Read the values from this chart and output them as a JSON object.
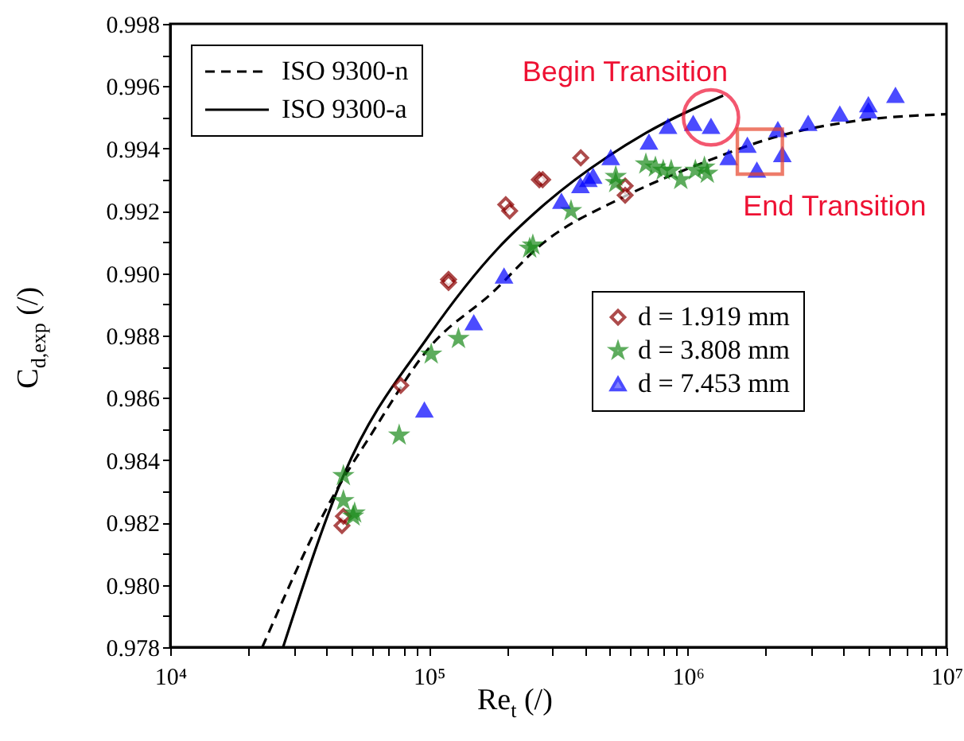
{
  "chart_data": {
    "type": "scatter",
    "xlabel": "Re$_{t}$ (/)",
    "ylabel": "C$_{d,exp}$ (/)",
    "log": "x",
    "grid": false,
    "legend": "top left",
    "xlim": [
      10000,
      10000000
    ],
    "xticks": [
      {
        "value": 10000,
        "label": "10⁴"
      },
      {
        "value": 20000,
        "label": null
      },
      {
        "value": 30000,
        "label": null
      },
      {
        "value": 40000,
        "label": null
      },
      {
        "value": 50000,
        "label": null
      },
      {
        "value": 60000,
        "label": null
      },
      {
        "value": 70000,
        "label": null
      },
      {
        "value": 80000,
        "label": null
      },
      {
        "value": 90000,
        "label": null
      },
      {
        "value": 100000,
        "label": "10⁵"
      },
      {
        "value": 200000,
        "label": null
      },
      {
        "value": 300000,
        "label": null
      },
      {
        "value": 400000,
        "label": null
      },
      {
        "value": 500000,
        "label": null
      },
      {
        "value": 600000,
        "label": null
      },
      {
        "value": 700000,
        "label": null
      },
      {
        "value": 800000,
        "label": null
      },
      {
        "value": 900000,
        "label": null
      },
      {
        "value": 1000000,
        "label": "10⁶"
      },
      {
        "value": 2000000,
        "label": null
      },
      {
        "value": 3000000,
        "label": null
      },
      {
        "value": 4000000,
        "label": null
      },
      {
        "value": 5000000,
        "label": null
      },
      {
        "value": 6000000,
        "label": null
      },
      {
        "value": 7000000,
        "label": null
      },
      {
        "value": 8000000,
        "label": null
      },
      {
        "value": 9000000,
        "label": null
      },
      {
        "value": 10000000,
        "label": "10⁷"
      }
    ],
    "ylim": [
      0.978,
      0.998
    ],
    "yticks": [
      {
        "value": 0.978,
        "label": "0.978"
      },
      {
        "value": 0.979,
        "label": null
      },
      {
        "value": 0.98,
        "label": "0.980"
      },
      {
        "value": 0.981,
        "label": null
      },
      {
        "value": 0.982,
        "label": "0.982"
      },
      {
        "value": 0.983,
        "label": null
      },
      {
        "value": 0.984,
        "label": "0.984"
      },
      {
        "value": 0.985,
        "label": null
      },
      {
        "value": 0.986,
        "label": "0.986"
      },
      {
        "value": 0.987,
        "label": null
      },
      {
        "value": 0.988,
        "label": "0.988"
      },
      {
        "value": 0.989,
        "label": null
      },
      {
        "value": 0.99,
        "label": "0.990"
      },
      {
        "value": 0.991,
        "label": null
      },
      {
        "value": 0.992,
        "label": "0.992"
      },
      {
        "value": 0.993,
        "label": null
      },
      {
        "value": 0.994,
        "label": "0.994"
      },
      {
        "value": 0.995,
        "label": null
      },
      {
        "value": 0.996,
        "label": "0.996"
      },
      {
        "value": 0.997,
        "label": null
      },
      {
        "value": 0.998,
        "label": "0.998"
      }
    ],
    "annotations": [
      {
        "text": "Begin Transition",
        "x": 1230000,
        "y": 0.995
      },
      {
        "text": "End Transition",
        "x": 1900000,
        "y": 0.9939
      }
    ],
    "series": [
      {
        "name": "ISO 9300-n",
        "type": "line",
        "line_style": "dashed",
        "marker": "none",
        "color": "#000000",
        "x": [
          22700,
          43000,
          59500,
          100000,
          177000,
          270000,
          550000,
          1110000,
          2250000,
          4600000,
          10000000
        ],
        "values": [
          0.978,
          0.9829,
          0.9848,
          0.9876,
          0.9894,
          0.9909,
          0.9924,
          0.9935,
          0.9944,
          0.9949,
          0.9951
        ]
      },
      {
        "name": "ISO 9300-a",
        "type": "line",
        "line_style": "solid",
        "marker": "none",
        "color": "#000000",
        "x": [
          27300,
          46700,
          100000,
          185000,
          270000,
          690000,
          1370000
        ],
        "values": [
          0.978,
          0.9835,
          0.988,
          0.9908,
          0.9921,
          0.9945,
          0.9957
        ]
      },
      {
        "name": "d = 1.919 mm",
        "marker": "diamond",
        "color": "#8b0000",
        "x": [
          46100,
          46700,
          77800,
          119000,
          119000,
          198000,
          205000,
          267000,
          275000,
          386000,
          573000,
          573000
        ],
        "values": [
          0.9819,
          0.9822,
          0.9864,
          0.9898,
          0.9897,
          0.9922,
          0.992,
          0.993,
          0.993,
          0.9937,
          0.9928,
          0.9925
        ]
      },
      {
        "name": "d = 3.808 mm",
        "marker": "star",
        "color": "#1a8a1a",
        "x": [
          46700,
          46700,
          51600,
          50900,
          76700,
          102000,
          130000,
          252000,
          245000,
          354000,
          527000,
          527000,
          689000,
          750000,
          804000,
          863000,
          940000,
          1070000,
          1160000,
          1190000
        ],
        "values": [
          0.9835,
          0.9827,
          0.9823,
          0.9822,
          0.9848,
          0.9874,
          0.9879,
          0.9909,
          0.9908,
          0.992,
          0.9931,
          0.9929,
          0.9935,
          0.9934,
          0.9933,
          0.9933,
          0.993,
          0.9933,
          0.9934,
          0.9932
        ]
      },
      {
        "name": "d = 7.453 mm",
        "marker": "triangle",
        "color": "#0000ff",
        "x": [
          96000,
          149000,
          195000,
          325000,
          385000,
          413000,
          431000,
          504000,
          708000,
          839000,
          1050000,
          1230000,
          1440000,
          1700000,
          1850000,
          2230000,
          2320000,
          2920000,
          3870000,
          4990000,
          4990000,
          6350000
        ],
        "values": [
          0.9856,
          0.9884,
          0.9899,
          0.9923,
          0.9928,
          0.993,
          0.9931,
          0.9937,
          0.9942,
          0.9947,
          0.9948,
          0.9947,
          0.9937,
          0.9941,
          0.9933,
          0.9946,
          0.9938,
          0.9948,
          0.9951,
          0.9954,
          0.9952,
          0.9957
        ]
      }
    ]
  }
}
